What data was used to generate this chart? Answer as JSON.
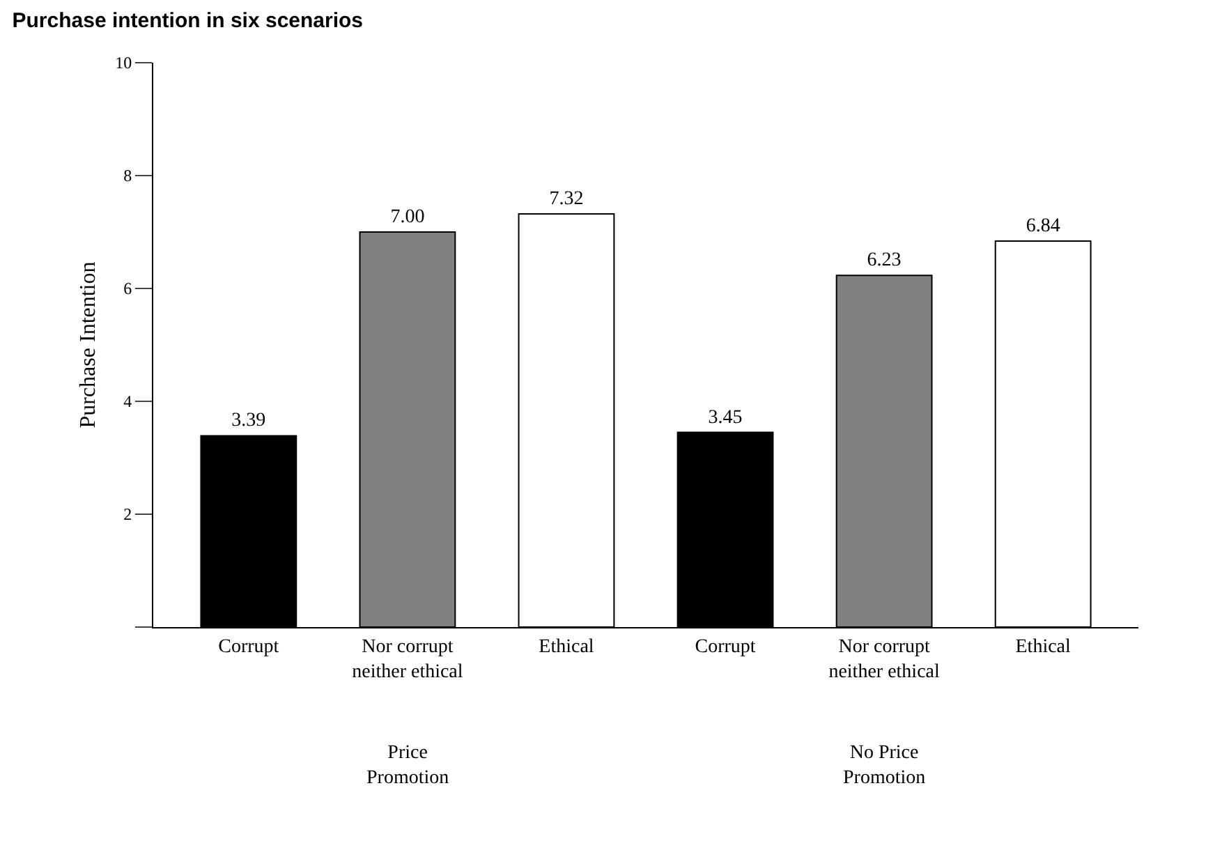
{
  "chart_data": {
    "type": "bar",
    "title": "Purchase intention in six scenarios",
    "ylabel": "Purchase Intention",
    "categories": [
      "Corrupt",
      "Nor corrupt neither ethical",
      "Ethical",
      "Corrupt",
      "Nor corrupt neither ethical",
      "Ethical"
    ],
    "values": [
      3.39,
      7.0,
      7.32,
      3.45,
      6.23,
      6.84
    ],
    "value_labels": [
      "3.39",
      "7.00",
      "7.32",
      "3.45",
      "6.23",
      "6.84"
    ],
    "colors": [
      "#000000",
      "#808080",
      "#ffffff",
      "#000000",
      "#808080",
      "#ffffff"
    ],
    "ylim": [
      0,
      10
    ],
    "yticks": [
      {
        "value": 0,
        "label": null
      },
      2,
      4,
      6,
      8,
      10
    ],
    "grid": false,
    "annotations": [
      "Price Promotion",
      "No Price Promotion"
    ]
  }
}
